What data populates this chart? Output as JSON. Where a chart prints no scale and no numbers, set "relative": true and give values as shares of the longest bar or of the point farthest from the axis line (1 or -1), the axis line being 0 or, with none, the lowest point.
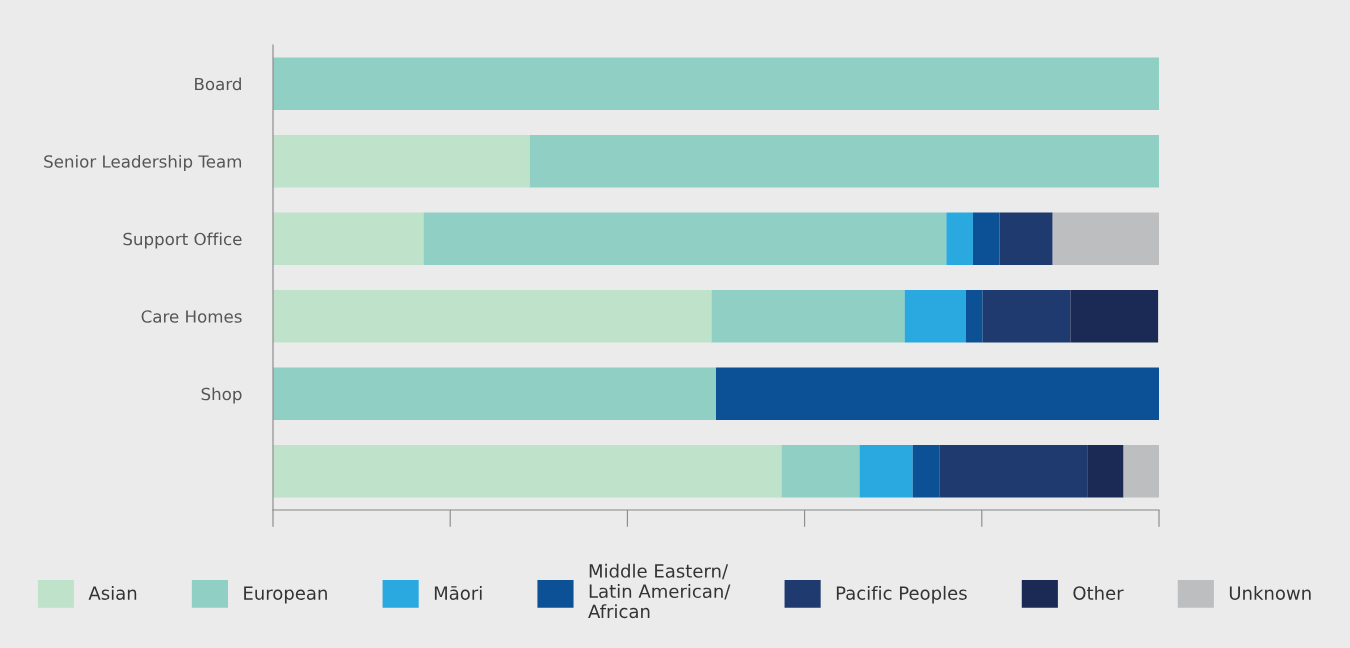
{
  "chart_data": {
    "type": "bar",
    "orientation": "horizontal",
    "stacked": true,
    "relative": true,
    "categories": [
      "Board",
      "Senior Leadership Team",
      "Support Office",
      "Care Homes",
      "Shop",
      null
    ],
    "series": [
      {
        "name": "Asian",
        "color": "#bfe2cb",
        "values": [
          0,
          0.29,
          0.17,
          0.495,
          0,
          0.574
        ]
      },
      {
        "name": "European",
        "color": "#8fcfc4",
        "values": [
          1,
          0.71,
          0.59,
          0.218,
          0.5,
          0.088
        ]
      },
      {
        "name": "Māori",
        "color": "#2aa9e0",
        "values": [
          0,
          0,
          0.03,
          0.069,
          0,
          0.06
        ]
      },
      {
        "name": "Middle Eastern/\nLatin American/\nAfrican",
        "color": "#0c5196",
        "values": [
          0,
          0,
          0.03,
          0.019,
          0.5,
          0.03
        ]
      },
      {
        "name": "Pacific Peoples",
        "color": "#1f3a6e",
        "values": [
          0,
          0,
          0.06,
          0.099,
          0,
          0.167
        ]
      },
      {
        "name": "Other",
        "color": "#1b2a55",
        "values": [
          0,
          0,
          0,
          0.099,
          0,
          0.041
        ]
      },
      {
        "name": "Unknown",
        "color": "#bdbec0",
        "values": [
          0,
          0,
          0.12,
          0,
          0,
          0.04
        ]
      }
    ],
    "legend": "bottom",
    "grid": false,
    "tick_labels": "y"
  }
}
